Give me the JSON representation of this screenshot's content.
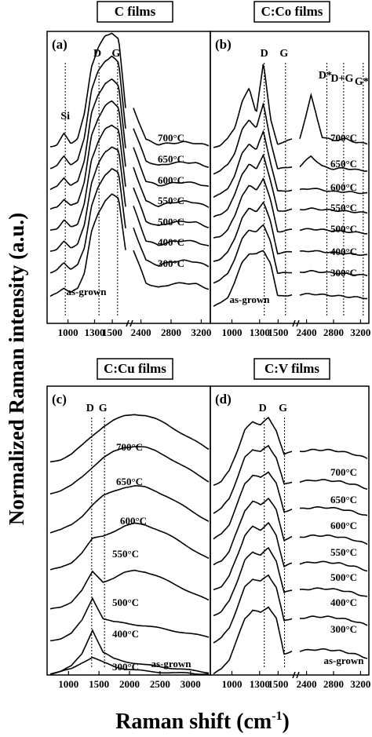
{
  "figure": {
    "ylabel": "Normalized Raman intensity (a.u.)",
    "xlabel": "Raman shift (cm",
    "xlabel_sup": "-1",
    "xlabel_close": ")"
  },
  "chart_data": [
    {
      "panel": "(a)",
      "title": "C films",
      "type": "line",
      "split_axis": true,
      "x_ticks_left": [
        "1000",
        "1300",
        "1500"
      ],
      "x_ticks_right": [
        "2400",
        "2800",
        "3200"
      ],
      "peak_labels": [
        "Si",
        "D",
        "G"
      ],
      "peak_positions": [
        970,
        1350,
        1560
      ],
      "series": [
        {
          "name": "700°C",
          "values": [
            0.02,
            0.04,
            0.13,
            0.05,
            0.09,
            0.3,
            0.7,
            0.86,
            0.96,
            0.99,
            0.93,
            0.35,
            0.08,
            0.04,
            0.05,
            0.06,
            0.05,
            0.03
          ]
        },
        {
          "name": "650°C",
          "values": [
            0.02,
            0.04,
            0.12,
            0.05,
            0.08,
            0.28,
            0.68,
            0.84,
            0.93,
            0.97,
            0.91,
            0.36,
            0.08,
            0.04,
            0.06,
            0.07,
            0.06,
            0.03
          ]
        },
        {
          "name": "600°C",
          "values": [
            0.02,
            0.04,
            0.12,
            0.05,
            0.08,
            0.27,
            0.66,
            0.82,
            0.92,
            0.95,
            0.9,
            0.37,
            0.09,
            0.05,
            0.07,
            0.08,
            0.07,
            0.04
          ]
        },
        {
          "name": "550°C",
          "values": [
            0.02,
            0.04,
            0.11,
            0.05,
            0.08,
            0.26,
            0.64,
            0.8,
            0.9,
            0.94,
            0.89,
            0.38,
            0.09,
            0.05,
            0.08,
            0.09,
            0.08,
            0.04
          ]
        },
        {
          "name": "500°C",
          "values": [
            0.02,
            0.04,
            0.11,
            0.05,
            0.08,
            0.25,
            0.62,
            0.78,
            0.88,
            0.92,
            0.88,
            0.39,
            0.1,
            0.06,
            0.09,
            0.1,
            0.09,
            0.05
          ]
        },
        {
          "name": "400°C",
          "values": [
            0.02,
            0.04,
            0.1,
            0.05,
            0.08,
            0.24,
            0.6,
            0.76,
            0.86,
            0.91,
            0.87,
            0.4,
            0.11,
            0.07,
            0.1,
            0.11,
            0.1,
            0.06
          ]
        },
        {
          "name": "300°C",
          "values": [
            0.02,
            0.04,
            0.1,
            0.05,
            0.08,
            0.23,
            0.58,
            0.74,
            0.85,
            0.9,
            0.86,
            0.4,
            0.12,
            0.08,
            0.11,
            0.12,
            0.11,
            0.07
          ]
        },
        {
          "name": "as-grown",
          "values": [
            0.02,
            0.04,
            0.09,
            0.05,
            0.08,
            0.22,
            0.56,
            0.72,
            0.83,
            0.88,
            0.85,
            0.41,
            0.13,
            0.09,
            0.12,
            0.13,
            0.12,
            0.08
          ]
        }
      ]
    },
    {
      "panel": "(b)",
      "title": "C:Co films",
      "type": "line",
      "split_axis": true,
      "x_ticks_left": [
        "1000",
        "1300",
        "1500"
      ],
      "x_ticks_right": [
        "2400",
        "2800",
        "3200"
      ],
      "peak_labels": [
        "D",
        "G",
        "D*",
        "D+G",
        "G*"
      ],
      "peak_positions": [
        1350,
        1580,
        2700,
        2950,
        3240
      ],
      "series": [
        {
          "name": "700°C",
          "values": [
            0.02,
            0.05,
            0.12,
            0.25,
            0.55,
            0.7,
            0.42,
            1.0,
            0.35,
            0.06,
            0.08,
            0.12,
            0.62,
            0.14,
            0.1,
            0.12,
            0.08,
            0.06
          ]
        },
        {
          "name": "650°C",
          "values": [
            0.02,
            0.05,
            0.12,
            0.26,
            0.52,
            0.64,
            0.55,
            0.82,
            0.4,
            0.07,
            0.08,
            0.1,
            0.22,
            0.1,
            0.07,
            0.08,
            0.06,
            0.05
          ]
        },
        {
          "name": "600°C",
          "values": [
            0.02,
            0.05,
            0.12,
            0.27,
            0.52,
            0.64,
            0.56,
            0.78,
            0.42,
            0.08,
            0.09,
            0.1,
            0.12,
            0.1,
            0.08,
            0.08,
            0.07,
            0.06
          ]
        },
        {
          "name": "550°C",
          "values": [
            0.02,
            0.05,
            0.12,
            0.28,
            0.52,
            0.64,
            0.57,
            0.75,
            0.44,
            0.09,
            0.1,
            0.11,
            0.12,
            0.11,
            0.1,
            0.09,
            0.08,
            0.07
          ]
        },
        {
          "name": "500°C",
          "values": [
            0.02,
            0.05,
            0.12,
            0.28,
            0.52,
            0.63,
            0.58,
            0.72,
            0.46,
            0.1,
            0.11,
            0.12,
            0.13,
            0.12,
            0.11,
            0.1,
            0.09,
            0.08
          ]
        },
        {
          "name": "400°C",
          "values": [
            0.02,
            0.05,
            0.12,
            0.29,
            0.52,
            0.63,
            0.6,
            0.7,
            0.48,
            0.11,
            0.12,
            0.13,
            0.14,
            0.13,
            0.12,
            0.11,
            0.1,
            0.09
          ]
        },
        {
          "name": "300°C",
          "values": [
            0.02,
            0.05,
            0.12,
            0.3,
            0.52,
            0.63,
            0.61,
            0.68,
            0.5,
            0.12,
            0.13,
            0.14,
            0.15,
            0.14,
            0.13,
            0.12,
            0.11,
            0.1
          ]
        },
        {
          "name": "as-grown",
          "values": [
            0.02,
            0.05,
            0.12,
            0.3,
            0.52,
            0.63,
            0.62,
            0.66,
            0.52,
            0.13,
            0.14,
            0.15,
            0.16,
            0.15,
            0.14,
            0.13,
            0.12,
            0.11
          ]
        }
      ]
    },
    {
      "panel": "(c)",
      "title": "C:Cu films",
      "type": "line",
      "split_axis": false,
      "x_ticks": [
        "1000",
        "1500",
        "2000",
        "2500",
        "3000"
      ],
      "peak_labels": [
        "D",
        "G"
      ],
      "peak_positions": [
        1380,
        1590
      ],
      "series": [
        {
          "name": "700°C",
          "values": [
            0.02,
            0.06,
            0.14,
            0.28,
            0.44,
            0.58,
            0.68,
            0.75,
            0.78,
            0.76,
            0.7,
            0.62,
            0.52,
            0.42,
            0.32,
            0.22
          ]
        },
        {
          "name": "650°C",
          "values": [
            0.02,
            0.06,
            0.14,
            0.28,
            0.44,
            0.58,
            0.68,
            0.75,
            0.77,
            0.75,
            0.69,
            0.61,
            0.51,
            0.41,
            0.31,
            0.21
          ]
        },
        {
          "name": "600°C",
          "values": [
            0.02,
            0.06,
            0.14,
            0.28,
            0.46,
            0.6,
            0.68,
            0.74,
            0.76,
            0.74,
            0.68,
            0.6,
            0.5,
            0.4,
            0.3,
            0.2
          ]
        },
        {
          "name": "550°C",
          "values": [
            0.02,
            0.06,
            0.14,
            0.3,
            0.52,
            0.56,
            0.64,
            0.72,
            0.76,
            0.74,
            0.68,
            0.6,
            0.5,
            0.4,
            0.3,
            0.2
          ]
        },
        {
          "name": "500°C",
          "values": [
            0.02,
            0.06,
            0.14,
            0.32,
            0.62,
            0.46,
            0.52,
            0.6,
            0.64,
            0.62,
            0.56,
            0.48,
            0.4,
            0.32,
            0.24,
            0.16
          ]
        },
        {
          "name": "400°C",
          "values": [
            0.02,
            0.06,
            0.14,
            0.34,
            0.7,
            0.38,
            0.32,
            0.3,
            0.28,
            0.26,
            0.23,
            0.2,
            0.17,
            0.14,
            0.11,
            0.08
          ]
        },
        {
          "name": "300°C",
          "values": [
            0.02,
            0.06,
            0.14,
            0.34,
            0.72,
            0.36,
            0.26,
            0.22,
            0.19,
            0.16,
            0.14,
            0.12,
            0.1,
            0.08,
            0.06,
            0.04
          ]
        },
        {
          "name": "as-grown",
          "values": [
            0.02,
            0.05,
            0.1,
            0.2,
            0.28,
            0.2,
            0.14,
            0.1,
            0.08,
            0.06,
            0.05,
            0.04,
            0.03,
            0.03,
            0.02,
            0.02
          ]
        }
      ]
    },
    {
      "panel": "(d)",
      "title": "C:V films",
      "type": "line",
      "split_axis": true,
      "x_ticks_left": [
        "1000",
        "1300",
        "1500"
      ],
      "x_ticks_right": [
        "2400",
        "2800",
        "3200"
      ],
      "peak_labels": [
        "D",
        "G"
      ],
      "peak_positions": [
        1350,
        1570
      ],
      "series": [
        {
          "name": "700°C",
          "values": [
            0.02,
            0.08,
            0.22,
            0.5,
            0.8,
            0.92,
            0.88,
            0.97,
            0.8,
            0.45,
            0.5,
            0.52,
            0.52,
            0.5,
            0.46,
            0.4
          ]
        },
        {
          "name": "650°C",
          "values": [
            0.02,
            0.08,
            0.22,
            0.5,
            0.8,
            0.92,
            0.88,
            0.97,
            0.8,
            0.42,
            0.46,
            0.48,
            0.48,
            0.46,
            0.42,
            0.36
          ]
        },
        {
          "name": "600°C",
          "values": [
            0.02,
            0.08,
            0.22,
            0.5,
            0.8,
            0.92,
            0.88,
            0.97,
            0.8,
            0.4,
            0.44,
            0.46,
            0.46,
            0.44,
            0.4,
            0.34
          ]
        },
        {
          "name": "550°C",
          "values": [
            0.02,
            0.08,
            0.22,
            0.5,
            0.8,
            0.92,
            0.88,
            0.97,
            0.8,
            0.38,
            0.42,
            0.44,
            0.44,
            0.42,
            0.38,
            0.32
          ]
        },
        {
          "name": "500°C",
          "values": [
            0.02,
            0.08,
            0.22,
            0.5,
            0.8,
            0.92,
            0.88,
            0.97,
            0.8,
            0.36,
            0.4,
            0.42,
            0.42,
            0.4,
            0.36,
            0.3
          ]
        },
        {
          "name": "400°C",
          "values": [
            0.02,
            0.08,
            0.22,
            0.5,
            0.8,
            0.92,
            0.88,
            0.97,
            0.8,
            0.34,
            0.38,
            0.4,
            0.4,
            0.38,
            0.34,
            0.28
          ]
        },
        {
          "name": "300°C",
          "values": [
            0.02,
            0.08,
            0.22,
            0.5,
            0.8,
            0.92,
            0.88,
            0.97,
            0.8,
            0.32,
            0.36,
            0.38,
            0.38,
            0.36,
            0.32,
            0.26
          ]
        },
        {
          "name": "as-grown",
          "values": [
            0.02,
            0.08,
            0.22,
            0.5,
            0.8,
            0.92,
            0.88,
            0.97,
            0.8,
            0.3,
            0.34,
            0.36,
            0.36,
            0.34,
            0.3,
            0.24
          ]
        }
      ]
    }
  ]
}
